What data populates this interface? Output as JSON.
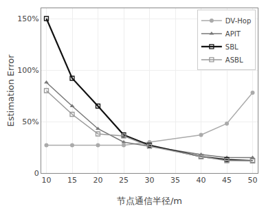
{
  "chart_data": {
    "type": "line",
    "xlabel": "节点通信半径/m",
    "ylabel": "Estimation Error",
    "x": [
      10,
      15,
      20,
      25,
      30,
      40,
      45,
      50
    ],
    "series": [
      {
        "name": "DV-Hop",
        "color": "#aaaaaa",
        "marker": "circle",
        "values": [
          0.27,
          0.27,
          0.27,
          0.27,
          0.3,
          0.37,
          0.48,
          0.78
        ]
      },
      {
        "name": "APIT",
        "color": "#777777",
        "marker": "triangle",
        "values": [
          0.88,
          0.65,
          0.43,
          0.3,
          0.26,
          0.18,
          0.15,
          0.15
        ]
      },
      {
        "name": "SBL",
        "color": "#111111",
        "marker": "open-square",
        "values": [
          1.5,
          0.92,
          0.65,
          0.37,
          0.27,
          0.16,
          0.13,
          0.12
        ]
      },
      {
        "name": "ASBL",
        "color": "#999999",
        "marker": "open-square",
        "values": [
          0.8,
          0.57,
          0.38,
          0.36,
          0.26,
          0.16,
          0.12,
          0.12
        ]
      }
    ],
    "xlim": [
      9,
      51
    ],
    "xticks": [
      10,
      15,
      20,
      25,
      30,
      35,
      40,
      45,
      50
    ],
    "ylim": [
      0,
      1.6
    ],
    "yticks": [
      0,
      {
        "value": 0.5,
        "label": "50%"
      },
      {
        "value": 1.0,
        "label": "100%"
      },
      {
        "value": 1.5,
        "label": "150%"
      }
    ],
    "grid": true,
    "legend": "upper right"
  }
}
